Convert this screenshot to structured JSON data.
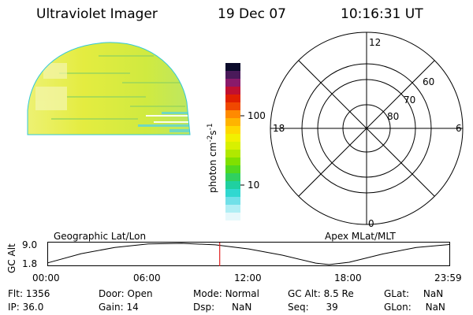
{
  "header": {
    "instrument": "Ultraviolet Imager",
    "date": "19 Dec 07",
    "time": "10:16:31 UT"
  },
  "colorbar": {
    "unit_label": "photon cm",
    "unit_sup1": "-2",
    "unit_mid": "s",
    "unit_sup2": "-1",
    "ticks": [
      "100",
      "10"
    ],
    "colors": [
      "#0a0a2a",
      "#4a1a5a",
      "#8a1a6a",
      "#c01030",
      "#e02000",
      "#f04800",
      "#ff8a00",
      "#ffb400",
      "#ffd800",
      "#f2f000",
      "#d8f000",
      "#b0e800",
      "#80e000",
      "#50d820",
      "#30d060",
      "#20d0a0",
      "#30d8d0",
      "#70e0e8",
      "#b0eef4",
      "#e6f8fb"
    ],
    "color_count": 20
  },
  "polar": {
    "mlt_labels": {
      "top": "12",
      "left": "18",
      "right": "6",
      "bottom": "0"
    },
    "lat_labels": [
      "60",
      "70",
      "80"
    ]
  },
  "timeline": {
    "left_title": "Geographic Lat/Lon",
    "right_title": "Apex MLat/MLT",
    "axis_label": "GC Alt",
    "y_ticks": [
      "9.0",
      "1.8"
    ],
    "x_ticks": [
      "00:00",
      "06:00",
      "12:00",
      "18:00",
      "23:59"
    ],
    "altitude_curve": {
      "x_hours": [
        0,
        2,
        4,
        6,
        8,
        10,
        12,
        14,
        16,
        16.8,
        18,
        20,
        22,
        23.98
      ],
      "alt_re": [
        2.4,
        5.5,
        7.6,
        8.8,
        9.0,
        8.5,
        7.1,
        5.0,
        2.3,
        1.8,
        2.6,
        5.4,
        7.6,
        8.6
      ]
    },
    "current_time_hours": 10.27,
    "marker_color": "#e02020"
  },
  "info": {
    "flt_label": "Flt:",
    "flt_value": "1356",
    "ip_label": "IP:",
    "ip_value": "36.0",
    "door_label": "Door:",
    "door_value": "Open",
    "gain_label": "Gain:",
    "gain_value": "14",
    "mode_label": "Mode:",
    "mode_value": "Normal",
    "dsp_label": "Dsp:",
    "dsp_value": "NaN",
    "gcalt_label": "GC Alt:",
    "gcalt_value": "8.5 Re",
    "seq_label": "Seq:",
    "seq_value": "39",
    "glat_label": "GLat:",
    "glat_value": "NaN",
    "glon_label": "GLon:",
    "glon_value": "NaN"
  }
}
